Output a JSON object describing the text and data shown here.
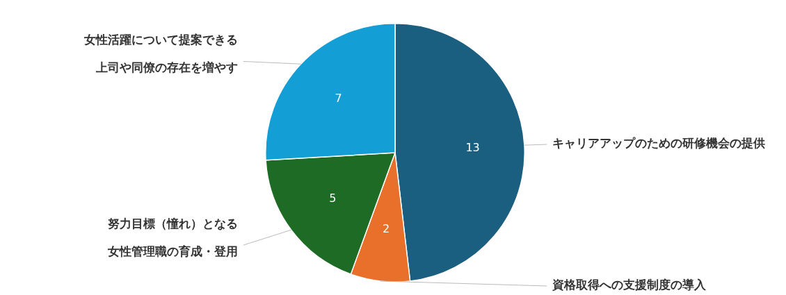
{
  "chart_data": {
    "type": "pie",
    "categories": [
      "キャリアアップのための研修機会の提供",
      "資格取得への支援制度の導入",
      "努力目標（憧れ）となる女性管理職の育成・登用",
      "女性活躍について提案できる上司や同僚の存在を増やす"
    ],
    "values": [
      13,
      2,
      5,
      7
    ],
    "colors": [
      "#1a5f80",
      "#e8702a",
      "#1e6b25",
      "#139fd6"
    ],
    "data_labels": true,
    "legend": false
  }
}
